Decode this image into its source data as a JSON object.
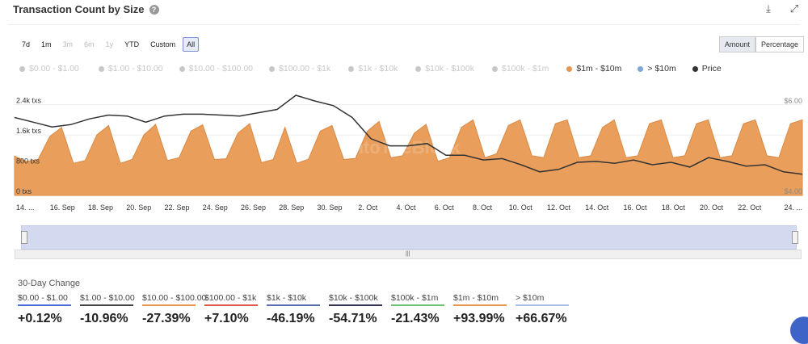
{
  "header": {
    "title": "Transaction Count by Size",
    "help_icon": "?"
  },
  "ranges": [
    "7d",
    "1m",
    "3m",
    "6m",
    "1y",
    "YTD",
    "Custom",
    "All"
  ],
  "ranges_disabled": [
    "3m",
    "6m",
    "1y"
  ],
  "ranges_active": "All",
  "modes": [
    "Amount",
    "Percentage"
  ],
  "modes_active": "Amount",
  "legend": [
    {
      "label": "$0.00 - $1.00",
      "color": "#c8c8c8",
      "active": false
    },
    {
      "label": "$1.00 - $10.00",
      "color": "#c8c8c8",
      "active": false
    },
    {
      "label": "$10.00 - $100.00",
      "color": "#c8c8c8",
      "active": false
    },
    {
      "label": "$100.00 - $1k",
      "color": "#c8c8c8",
      "active": false
    },
    {
      "label": "$1k - $10k",
      "color": "#c8c8c8",
      "active": false
    },
    {
      "label": "$10k - $100k",
      "color": "#c8c8c8",
      "active": false
    },
    {
      "label": "$100k - $1m",
      "color": "#c8c8c8",
      "active": false
    },
    {
      "label": "$1m - $10m",
      "color": "#e8964d",
      "active": true
    },
    {
      "label": "> $10m",
      "color": "#7fa6d8",
      "active": true
    },
    {
      "label": "Price",
      "color": "#333333",
      "active": true
    }
  ],
  "chart_data": {
    "type": "area",
    "watermark": "IntoTheBlock",
    "y_left_ticks": [
      "0 txs",
      "800 txs",
      "1.6k txs",
      "2.4k txs"
    ],
    "y_left_values": [
      0,
      800,
      1600,
      2400
    ],
    "y_right_ticks": [
      "$4.00",
      "$6.00"
    ],
    "x_tick_labels": [
      "14. ...",
      "16. Sep",
      "18. Sep",
      "20. Sep",
      "22. Sep",
      "24. Sep",
      "26. Sep",
      "28. Sep",
      "30. Sep",
      "2. Oct",
      "4. Oct",
      "6. Oct",
      "8. Oct",
      "10. Oct",
      "12. Oct",
      "14. Oct",
      "16. Oct",
      "18. Oct",
      "20. Oct",
      "22. Oct",
      "24. ..."
    ],
    "ylim": [
      0,
      2500
    ],
    "price_ylim": [
      4.0,
      6.0
    ],
    "series": [
      {
        "name": "$1m - $10m",
        "color": "#e8964d",
        "values": [
          1040,
          900,
          950,
          1560,
          1800,
          850,
          920,
          1600,
          1850,
          850,
          950,
          1600,
          1880,
          920,
          1000,
          1700,
          1870,
          950,
          970,
          1650,
          1900,
          870,
          950,
          1800,
          850,
          960,
          1700,
          1850,
          950,
          980,
          1700,
          1960,
          1000,
          1050,
          1650,
          1880,
          900,
          1000,
          1800,
          2000,
          1000,
          1100,
          1850,
          2000,
          1050,
          1000,
          1900,
          2000,
          1000,
          1050,
          1800,
          2000,
          1000,
          1050,
          1900,
          2000,
          1000,
          1050,
          1900,
          2000,
          1000,
          1050,
          1900,
          2000,
          1050,
          1000,
          1900,
          2000
        ]
      },
      {
        "name": "Price",
        "color": "#333333",
        "values": [
          5.65,
          5.55,
          5.45,
          5.5,
          5.62,
          5.7,
          5.68,
          5.55,
          5.68,
          5.72,
          5.72,
          5.7,
          5.68,
          5.75,
          5.82,
          6.12,
          6.0,
          5.9,
          5.65,
          5.2,
          5.05,
          5.05,
          5.1,
          4.85,
          4.85,
          4.75,
          4.78,
          4.65,
          4.5,
          4.55,
          4.7,
          4.72,
          4.68,
          4.75,
          4.65,
          4.7,
          4.6,
          4.8,
          4.72,
          4.62,
          4.65,
          4.5,
          4.45
        ]
      }
    ]
  },
  "change": {
    "title": "30-Day Change",
    "items": [
      {
        "label": "$0.00 - $1.00",
        "value": "+0.12%",
        "color": "#4a6fd6"
      },
      {
        "label": "$1.00 - $10.00",
        "value": "-10.96%",
        "color": "#444444"
      },
      {
        "label": "$10.00 - $100.00",
        "value": "-27.39%",
        "color": "#e8964d"
      },
      {
        "label": "$100.00 - $1k",
        "value": "+7.10%",
        "color": "#e05a4a"
      },
      {
        "label": "$1k - $10k",
        "value": "-46.19%",
        "color": "#5a6fb0"
      },
      {
        "label": "$10k - $100k",
        "value": "-54.71%",
        "color": "#333355"
      },
      {
        "label": "$100k - $1m",
        "value": "-21.43%",
        "color": "#6cc070"
      },
      {
        "label": "$1m - $10m",
        "value": "+93.99%",
        "color": "#e8964d"
      },
      {
        "label": "> $10m",
        "value": "+66.67%",
        "color": "#a8c0e6"
      }
    ]
  }
}
